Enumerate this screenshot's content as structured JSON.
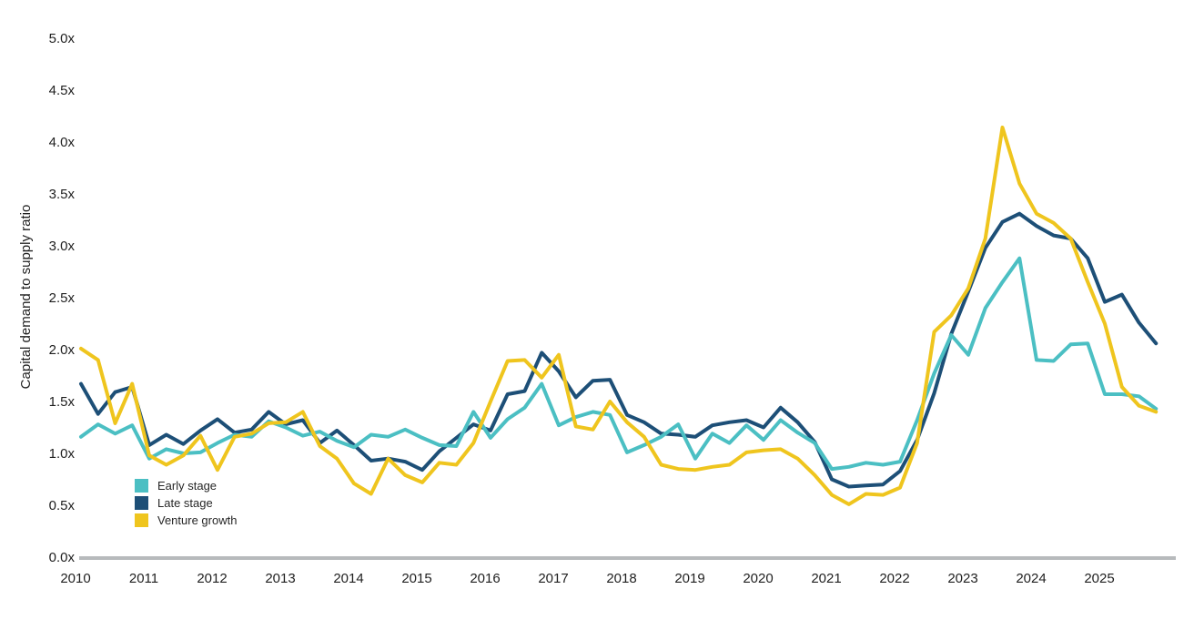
{
  "page": {
    "background": "#ffffff"
  },
  "chart_data": {
    "type": "line",
    "title": "",
    "xlabel": "",
    "ylabel": "Capital demand to supply ratio",
    "x_frequency": "quarterly",
    "x_start": "2010Q1",
    "x_end": "2025Q4",
    "x_tick_labels": [
      "2010",
      "2011",
      "2012",
      "2013",
      "2014",
      "2015",
      "2016",
      "2017",
      "2018",
      "2019",
      "2020",
      "2021",
      "2022",
      "2023",
      "2024",
      "2025"
    ],
    "y_ticks": [
      {
        "value": 0.0,
        "label": "0.0x"
      },
      {
        "value": 0.5,
        "label": "0.5x"
      },
      {
        "value": 1.0,
        "label": "1.0x"
      },
      {
        "value": 1.5,
        "label": "1.5x"
      },
      {
        "value": 2.0,
        "label": "2.0x"
      },
      {
        "value": 2.5,
        "label": "2.5x"
      },
      {
        "value": 3.0,
        "label": "3.0x"
      },
      {
        "value": 3.5,
        "label": "3.5x"
      },
      {
        "value": 4.0,
        "label": "4.0x"
      },
      {
        "value": 4.5,
        "label": "4.5x"
      },
      {
        "value": 5.0,
        "label": "5.0x"
      }
    ],
    "ylim": [
      0,
      5
    ],
    "grid": false,
    "legend_position": "inside-bottom-left",
    "axis_line_color": "#b7babc",
    "text_color": "#1f1f1f",
    "series": [
      {
        "name": "Early stage",
        "color": "#4bbfc3",
        "values": [
          1.16,
          1.28,
          1.19,
          1.27,
          0.95,
          1.04,
          1.0,
          1.01,
          1.1,
          1.18,
          1.16,
          1.31,
          1.25,
          1.17,
          1.21,
          1.12,
          1.06,
          1.18,
          1.16,
          1.23,
          1.15,
          1.08,
          1.07,
          1.4,
          1.15,
          1.33,
          1.44,
          1.67,
          1.27,
          1.35,
          1.4,
          1.37,
          1.01,
          1.08,
          1.16,
          1.28,
          0.95,
          1.19,
          1.1,
          1.27,
          1.13,
          1.32,
          1.2,
          1.1,
          0.85,
          0.87,
          0.91,
          0.89,
          0.92,
          1.32,
          1.77,
          2.14,
          1.95,
          2.4,
          2.65,
          2.88,
          1.9,
          1.89,
          2.05,
          2.06,
          1.57,
          1.57,
          1.55,
          1.43
        ]
      },
      {
        "name": "Late stage",
        "color": "#1d4f77",
        "values": [
          1.67,
          1.38,
          1.59,
          1.64,
          1.08,
          1.18,
          1.09,
          1.22,
          1.33,
          1.2,
          1.23,
          1.4,
          1.28,
          1.32,
          1.1,
          1.22,
          1.08,
          0.93,
          0.95,
          0.92,
          0.84,
          1.02,
          1.15,
          1.28,
          1.22,
          1.57,
          1.6,
          1.97,
          1.79,
          1.54,
          1.7,
          1.71,
          1.37,
          1.3,
          1.19,
          1.18,
          1.16,
          1.27,
          1.3,
          1.32,
          1.25,
          1.44,
          1.3,
          1.11,
          0.75,
          0.68,
          0.69,
          0.7,
          0.83,
          1.13,
          1.58,
          2.15,
          2.56,
          2.98,
          3.23,
          3.31,
          3.19,
          3.1,
          3.07,
          2.88,
          2.46,
          2.53,
          2.26,
          2.06
        ]
      },
      {
        "name": "Venture growth",
        "color": "#efc51e",
        "values": [
          2.01,
          1.9,
          1.29,
          1.67,
          0.98,
          0.89,
          0.98,
          1.17,
          0.84,
          1.16,
          1.19,
          1.29,
          1.3,
          1.4,
          1.07,
          0.95,
          0.71,
          0.61,
          0.95,
          0.79,
          0.72,
          0.91,
          0.89,
          1.1,
          1.5,
          1.89,
          1.9,
          1.73,
          1.95,
          1.26,
          1.23,
          1.5,
          1.3,
          1.16,
          0.89,
          0.85,
          0.84,
          0.87,
          0.89,
          1.01,
          1.03,
          1.04,
          0.95,
          0.79,
          0.6,
          0.51,
          0.61,
          0.6,
          0.67,
          1.1,
          2.17,
          2.33,
          2.59,
          3.07,
          4.14,
          3.6,
          3.31,
          3.22,
          3.07,
          2.65,
          2.25,
          1.64,
          1.46,
          1.4
        ]
      }
    ]
  }
}
